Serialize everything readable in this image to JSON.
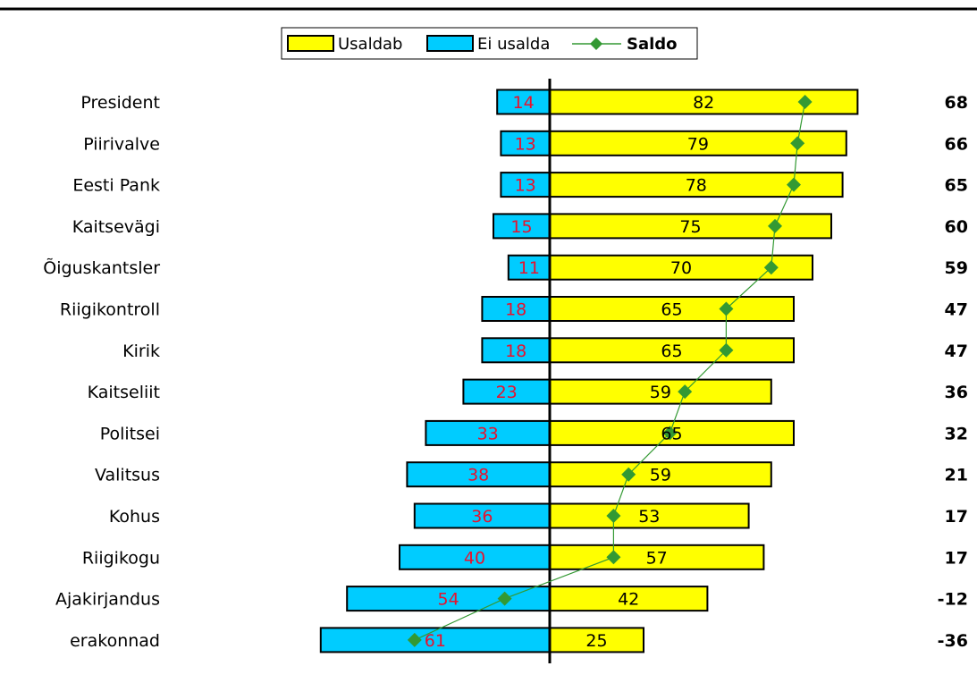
{
  "chart_data": {
    "type": "bar",
    "legend": {
      "position": "top-center",
      "entries": [
        "Usaldab",
        "Ei usalda",
        "Saldo"
      ]
    },
    "categories": [
      "President",
      "Piirivalve",
      "Eesti Pank",
      "Kaitsevägi",
      "Õiguskantsler",
      "Riigikontroll",
      "Kirik",
      "Kaitseliit",
      "Politsei",
      "Valitsus",
      "Kohus",
      "Riigikogu",
      "Ajakirjandus",
      "erakonnad"
    ],
    "series": [
      {
        "name": "Usaldab",
        "values": [
          82,
          79,
          78,
          75,
          70,
          65,
          65,
          59,
          65,
          59,
          53,
          57,
          42,
          25
        ]
      },
      {
        "name": "Ei usalda",
        "values": [
          14,
          13,
          13,
          15,
          11,
          18,
          18,
          23,
          33,
          38,
          36,
          40,
          54,
          61
        ]
      },
      {
        "name": "Saldo",
        "values": [
          68,
          66,
          65,
          60,
          59,
          47,
          47,
          36,
          32,
          21,
          17,
          17,
          -12,
          -36
        ]
      }
    ],
    "saldo_labels": [
      "68",
      "66",
      "65",
      "60",
      "59",
      "47",
      "47",
      "36",
      "32",
      "21",
      "17",
      "17",
      "-12",
      "-36"
    ],
    "colors": {
      "usaldab": "#ffff00",
      "ei_usalda": "#00ccff",
      "saldo": "#339933",
      "ei_usalda_label": "#e8112d",
      "axis": "#000000"
    }
  }
}
